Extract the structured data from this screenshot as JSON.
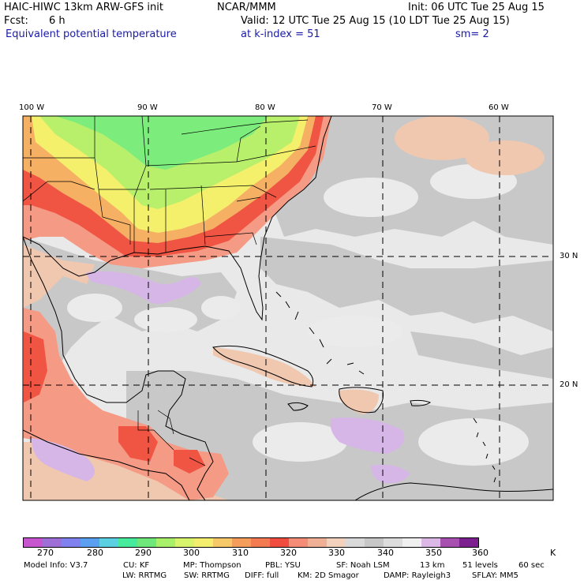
{
  "header": {
    "model_title": "HAIC-HIWC 13km ARW-GFS init",
    "org": "NCAR/MMM",
    "init": "Init: 06 UTC Tue 25 Aug 15",
    "fcst_label": "Fcst:",
    "fcst_value": "6 h",
    "valid": "Valid: 12 UTC Tue 25 Aug 15 (10 LDT Tue 25 Aug 15)",
    "field_name": "Equivalent potential temperature",
    "level": "at k-index =  51",
    "smoothing": "sm= 2"
  },
  "map": {
    "lon_labels": [
      "100 W",
      "90 W",
      "80 W",
      "70 W",
      "60 W"
    ],
    "lat_labels": [
      "30 N",
      "20 N"
    ],
    "colors": {
      "ocean_gray": "#c8c8c8",
      "ocean_light": "#e9e9e9",
      "warm_peach": "#f0c8b0",
      "salmon": "#f59a85",
      "red": "#f05544",
      "orange": "#f5b064",
      "yellow": "#f4f06c",
      "lime": "#b8f06c",
      "green": "#7cec7c",
      "lavender": "#d6b6e6"
    }
  },
  "colorbar": {
    "colors": [
      "#c855d0",
      "#9f6fd8",
      "#8080ee",
      "#5a9ff0",
      "#5ad0e0",
      "#46ec9c",
      "#6ee87a",
      "#a8f06a",
      "#d8f46c",
      "#f4ee6e",
      "#f6c868",
      "#f59e5c",
      "#f47a52",
      "#f04c40",
      "#f58c78",
      "#f0b096",
      "#f3d2bd",
      "#d9d9d9",
      "#c7c7c7",
      "#dddddd",
      "#f0f0f0",
      "#dcb8e6",
      "#a850b0",
      "#7c2090"
    ],
    "labels": [
      "270",
      "280",
      "290",
      "300",
      "310",
      "320",
      "330",
      "340",
      "350",
      "360"
    ],
    "unit": "K"
  },
  "footer": {
    "line1": [
      {
        "key": "model_info",
        "text": "Model Info: V3.7"
      },
      {
        "key": "cu",
        "text": "CU: KF"
      },
      {
        "key": "mp",
        "text": "MP: Thompson"
      },
      {
        "key": "pbl",
        "text": "PBL: YSU"
      },
      {
        "key": "sf",
        "text": "SF: Noah LSM"
      },
      {
        "key": "res",
        "text": "13 km"
      },
      {
        "key": "levels",
        "text": "51 levels"
      },
      {
        "key": "dt",
        "text": "60 sec"
      }
    ],
    "line2": [
      {
        "key": "lw",
        "text": "LW: RRTMG"
      },
      {
        "key": "sw",
        "text": "SW: RRTMG"
      },
      {
        "key": "diff",
        "text": "DIFF: full"
      },
      {
        "key": "km",
        "text": "KM: 2D Smagor"
      },
      {
        "key": "damp",
        "text": "DAMP: Rayleigh3"
      },
      {
        "key": "sflay",
        "text": "SFLAY: MM5"
      }
    ]
  }
}
